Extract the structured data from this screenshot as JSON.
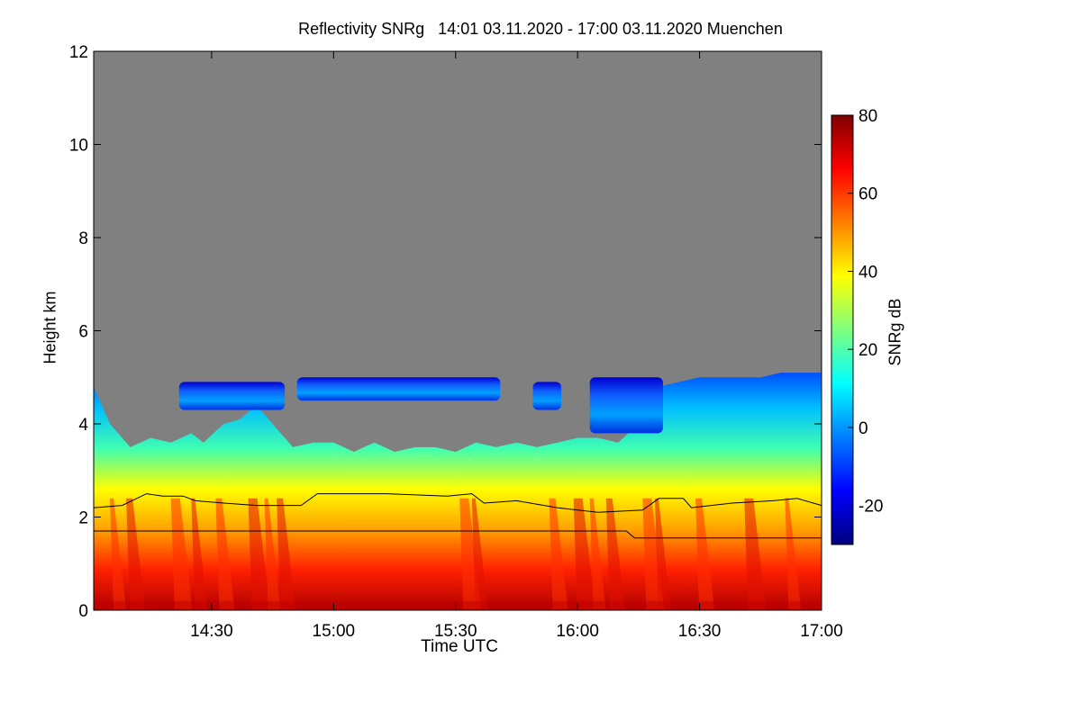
{
  "chart_data": {
    "type": "heatmap",
    "title": "Reflectivity SNRg   14:01 03.11.2020 - 17:00 03.11.2020 Muenchen",
    "xlabel": "Time UTC",
    "ylabel": "Height km",
    "colorbar_label": "SNRg dB",
    "x_range_minutes": [
      841,
      1020
    ],
    "x_ticks": [
      {
        "minute": 870,
        "label": "14:30"
      },
      {
        "minute": 900,
        "label": "15:00"
      },
      {
        "minute": 930,
        "label": "15:30"
      },
      {
        "minute": 960,
        "label": "16:00"
      },
      {
        "minute": 990,
        "label": "16:30"
      },
      {
        "minute": 1020,
        "label": "17:00"
      }
    ],
    "ylim": [
      0,
      12
    ],
    "y_ticks": [
      0,
      2,
      4,
      6,
      8,
      10,
      12
    ],
    "colorbar_range": [
      -30,
      80
    ],
    "colorbar_ticks": [
      80,
      60,
      40,
      20,
      0,
      -20
    ],
    "colorscale": [
      "#00007f",
      "#0000ff",
      "#007fff",
      "#00ffff",
      "#7fff7f",
      "#ffff00",
      "#ff7f00",
      "#ff0000",
      "#7f0000"
    ],
    "no_signal_color": "#808080",
    "echo_top_km": [
      {
        "minute": 841,
        "km": 4.8
      },
      {
        "minute": 845,
        "km": 4.0
      },
      {
        "minute": 850,
        "km": 3.5
      },
      {
        "minute": 855,
        "km": 3.7
      },
      {
        "minute": 860,
        "km": 3.6
      },
      {
        "minute": 865,
        "km": 3.8
      },
      {
        "minute": 868,
        "km": 3.6
      },
      {
        "minute": 873,
        "km": 4.0
      },
      {
        "minute": 877,
        "km": 4.1
      },
      {
        "minute": 881,
        "km": 4.4
      },
      {
        "minute": 885,
        "km": 4.0
      },
      {
        "minute": 890,
        "km": 3.5
      },
      {
        "minute": 895,
        "km": 3.6
      },
      {
        "minute": 900,
        "km": 3.6
      },
      {
        "minute": 905,
        "km": 3.4
      },
      {
        "minute": 910,
        "km": 3.6
      },
      {
        "minute": 915,
        "km": 3.4
      },
      {
        "minute": 920,
        "km": 3.5
      },
      {
        "minute": 925,
        "km": 3.5
      },
      {
        "minute": 930,
        "km": 3.4
      },
      {
        "minute": 935,
        "km": 3.6
      },
      {
        "minute": 940,
        "km": 3.5
      },
      {
        "minute": 945,
        "km": 3.6
      },
      {
        "minute": 950,
        "km": 3.5
      },
      {
        "minute": 955,
        "km": 3.6
      },
      {
        "minute": 960,
        "km": 3.7
      },
      {
        "minute": 965,
        "km": 3.7
      },
      {
        "minute": 970,
        "km": 3.6
      },
      {
        "minute": 975,
        "km": 4.0
      },
      {
        "minute": 980,
        "km": 4.8
      },
      {
        "minute": 985,
        "km": 4.9
      },
      {
        "minute": 990,
        "km": 5.0
      },
      {
        "minute": 995,
        "km": 5.0
      },
      {
        "minute": 1000,
        "km": 5.0
      },
      {
        "minute": 1005,
        "km": 5.0
      },
      {
        "minute": 1010,
        "km": 5.1
      },
      {
        "minute": 1015,
        "km": 5.1
      },
      {
        "minute": 1020,
        "km": 5.1
      }
    ],
    "elevated_layers": [
      {
        "start_minute": 862,
        "end_minute": 888,
        "bottom_km": 4.3,
        "top_km": 4.9
      },
      {
        "start_minute": 891,
        "end_minute": 941,
        "bottom_km": 4.5,
        "top_km": 5.0
      },
      {
        "start_minute": 949,
        "end_minute": 956,
        "bottom_km": 4.3,
        "top_km": 4.9
      },
      {
        "start_minute": 963,
        "end_minute": 981,
        "bottom_km": 3.8,
        "top_km": 5.0
      }
    ],
    "upper_line_km": [
      {
        "minute": 841,
        "km": 2.2
      },
      {
        "minute": 848,
        "km": 2.25
      },
      {
        "minute": 854,
        "km": 2.5
      },
      {
        "minute": 858,
        "km": 2.45
      },
      {
        "minute": 863,
        "km": 2.45
      },
      {
        "minute": 866,
        "km": 2.35
      },
      {
        "minute": 873,
        "km": 2.3
      },
      {
        "minute": 881,
        "km": 2.25
      },
      {
        "minute": 892,
        "km": 2.25
      },
      {
        "minute": 896,
        "km": 2.5
      },
      {
        "minute": 913,
        "km": 2.5
      },
      {
        "minute": 928,
        "km": 2.45
      },
      {
        "minute": 934,
        "km": 2.5
      },
      {
        "minute": 937,
        "km": 2.3
      },
      {
        "minute": 945,
        "km": 2.35
      },
      {
        "minute": 955,
        "km": 2.2
      },
      {
        "minute": 965,
        "km": 2.1
      },
      {
        "minute": 976,
        "km": 2.15
      },
      {
        "minute": 980,
        "km": 2.4
      },
      {
        "minute": 986,
        "km": 2.4
      },
      {
        "minute": 988,
        "km": 2.2
      },
      {
        "minute": 998,
        "km": 2.3
      },
      {
        "minute": 1008,
        "km": 2.35
      },
      {
        "minute": 1014,
        "km": 2.4
      },
      {
        "minute": 1020,
        "km": 2.25
      }
    ],
    "lower_line_km": [
      {
        "minute": 841,
        "km": 1.7
      },
      {
        "minute": 972,
        "km": 1.7
      },
      {
        "minute": 974,
        "km": 1.55
      },
      {
        "minute": 1020,
        "km": 1.55
      }
    ]
  }
}
